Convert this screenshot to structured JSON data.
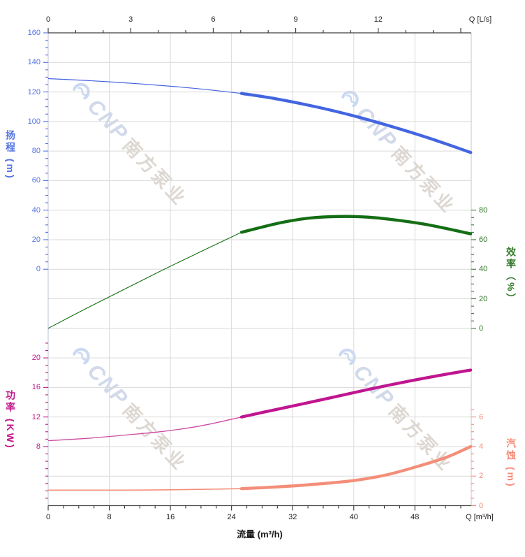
{
  "watermark": {
    "brand": "CNP",
    "company": "南方泵业",
    "logo": "cnp-swoosh-logo"
  },
  "chart_data": {
    "type": "line",
    "title": "",
    "x_axis_top": {
      "end_label": "Q [L/s]",
      "unit": "L/s",
      "major_ticks": [
        0,
        3,
        6,
        9,
        12
      ],
      "minor_step": 1,
      "range": [
        0,
        15
      ]
    },
    "x_axis_bottom": {
      "title": "流量 (m³/h)",
      "end_label": "Q [m³/h]",
      "unit": "m³/h",
      "major_ticks": [
        0,
        8,
        16,
        24,
        32,
        40,
        48
      ],
      "minor_step": 2,
      "range": [
        0,
        55.4
      ]
    },
    "y_axes": [
      {
        "id": "head",
        "title": "扬程 (m)",
        "side": "left",
        "color": "#5273e2",
        "major_ticks": [
          160,
          140,
          120,
          100,
          80,
          60,
          40,
          20,
          0
        ],
        "minor_step": 5,
        "range": [
          0,
          160
        ]
      },
      {
        "id": "efficiency",
        "title": "效率（%）",
        "side": "right",
        "color": "#35782d",
        "major_ticks": [
          80,
          60,
          40,
          20,
          0
        ],
        "minor_step": 5,
        "range": [
          0,
          80
        ]
      },
      {
        "id": "power",
        "title": "功率 (KW)",
        "side": "left",
        "color": "#c2188c",
        "major_ticks": [
          20,
          16,
          12,
          8
        ],
        "minor_step": 1,
        "range": [
          1,
          22
        ]
      },
      {
        "id": "npsh",
        "title": "汽蚀 (m)",
        "side": "right",
        "color": "#f58a76",
        "major_ticks": [
          6,
          4,
          2,
          0
        ],
        "minor_step": 0.5,
        "range": [
          0,
          6.5
        ]
      }
    ],
    "rated_flow_range": [
      25.3,
      55.3
    ],
    "grid": true,
    "series": [
      {
        "name": "head",
        "axis": "head",
        "color": "#4365e0",
        "thin_width": 1.2,
        "points": [
          [
            0,
            129
          ],
          [
            5,
            127.8
          ],
          [
            10,
            126.2
          ],
          [
            15,
            124.3
          ],
          [
            20,
            122
          ],
          [
            25.3,
            119
          ],
          [
            30,
            115.2
          ],
          [
            35,
            110
          ],
          [
            40,
            103.8
          ],
          [
            45,
            96.5
          ],
          [
            50,
            88.5
          ],
          [
            55.3,
            79
          ]
        ]
      },
      {
        "name": "efficiency",
        "axis": "efficiency",
        "color": "#156e15",
        "thin_width": 1.1,
        "points": [
          [
            0,
            0
          ],
          [
            5,
            13.5
          ],
          [
            10,
            26.5
          ],
          [
            15,
            39.5
          ],
          [
            20,
            52
          ],
          [
            25.3,
            65
          ],
          [
            30,
            71
          ],
          [
            34,
            74.5
          ],
          [
            38,
            75.7
          ],
          [
            42,
            75.2
          ],
          [
            46,
            73
          ],
          [
            50,
            69.8
          ],
          [
            55.3,
            64
          ]
        ]
      },
      {
        "name": "power",
        "axis": "power",
        "color": "#c01590",
        "thin_color": "#ce4ba2",
        "thin_width": 1.3,
        "points": [
          [
            0,
            8.8
          ],
          [
            5,
            9.1
          ],
          [
            10,
            9.55
          ],
          [
            15,
            10.05
          ],
          [
            20,
            10.8
          ],
          [
            25.3,
            12
          ],
          [
            30,
            13.05
          ],
          [
            35,
            14.15
          ],
          [
            40,
            15.3
          ],
          [
            45,
            16.4
          ],
          [
            50,
            17.4
          ],
          [
            55.3,
            18.35
          ]
        ]
      },
      {
        "name": "npsh",
        "axis": "npsh",
        "color": "#f48e79",
        "thin_width": 1.6,
        "points": [
          [
            0,
            1.05
          ],
          [
            5,
            1.05
          ],
          [
            10,
            1.05
          ],
          [
            15,
            1.07
          ],
          [
            20,
            1.1
          ],
          [
            25.3,
            1.15
          ],
          [
            30,
            1.27
          ],
          [
            35,
            1.45
          ],
          [
            40,
            1.7
          ],
          [
            44,
            2.05
          ],
          [
            48,
            2.6
          ],
          [
            52,
            3.25
          ],
          [
            55.3,
            4.0
          ]
        ]
      }
    ]
  }
}
